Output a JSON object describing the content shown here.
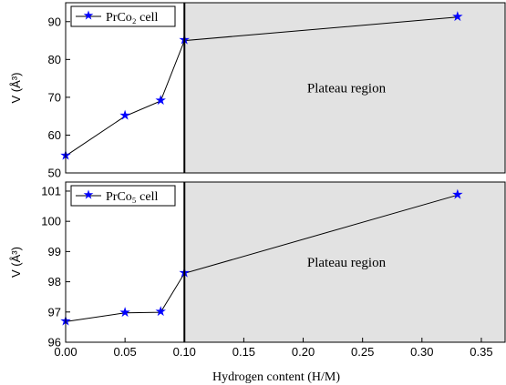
{
  "chart_data": [
    {
      "type": "line",
      "ylabel": "V (Å³)",
      "xlabel": "",
      "ylim": [
        50,
        95
      ],
      "xlim": [
        0,
        0.37
      ],
      "yticks": [
        "50",
        "60",
        "70",
        "80",
        "90"
      ],
      "series": [
        {
          "name": "PrCo₂ cell",
          "x": [
            0.0,
            0.05,
            0.08,
            0.1,
            0.33
          ],
          "values": [
            54.5,
            65.0,
            69.0,
            85.0,
            91.2
          ]
        }
      ],
      "plateau_start_x": 0.1,
      "annotation": "Plateau region",
      "legend_position": "top-left",
      "marker": "star",
      "series_color": "#0000ff"
    },
    {
      "type": "line",
      "ylabel": "V (Å³)",
      "xlabel": "Hydrogen content (H/M)",
      "ylim": [
        96,
        101.3
      ],
      "xlim": [
        0,
        0.37
      ],
      "yticks": [
        "96",
        "97",
        "98",
        "99",
        "100",
        "101"
      ],
      "xticks": [
        "0.00",
        "0.05",
        "0.10",
        "0.15",
        "0.20",
        "0.25",
        "0.30",
        "0.35"
      ],
      "series": [
        {
          "name": "PrCo₅ cell",
          "x": [
            0.0,
            0.05,
            0.08,
            0.1,
            0.33
          ],
          "values": [
            96.68,
            96.97,
            96.99,
            98.28,
            100.87
          ]
        }
      ],
      "plateau_start_x": 0.1,
      "annotation": "Plateau region",
      "legend_position": "top-left",
      "marker": "star",
      "series_color": "#0000ff"
    }
  ],
  "colors": {
    "plateau_fill": "#e2e2e2",
    "line": "#000000",
    "marker": "#0000ff"
  }
}
